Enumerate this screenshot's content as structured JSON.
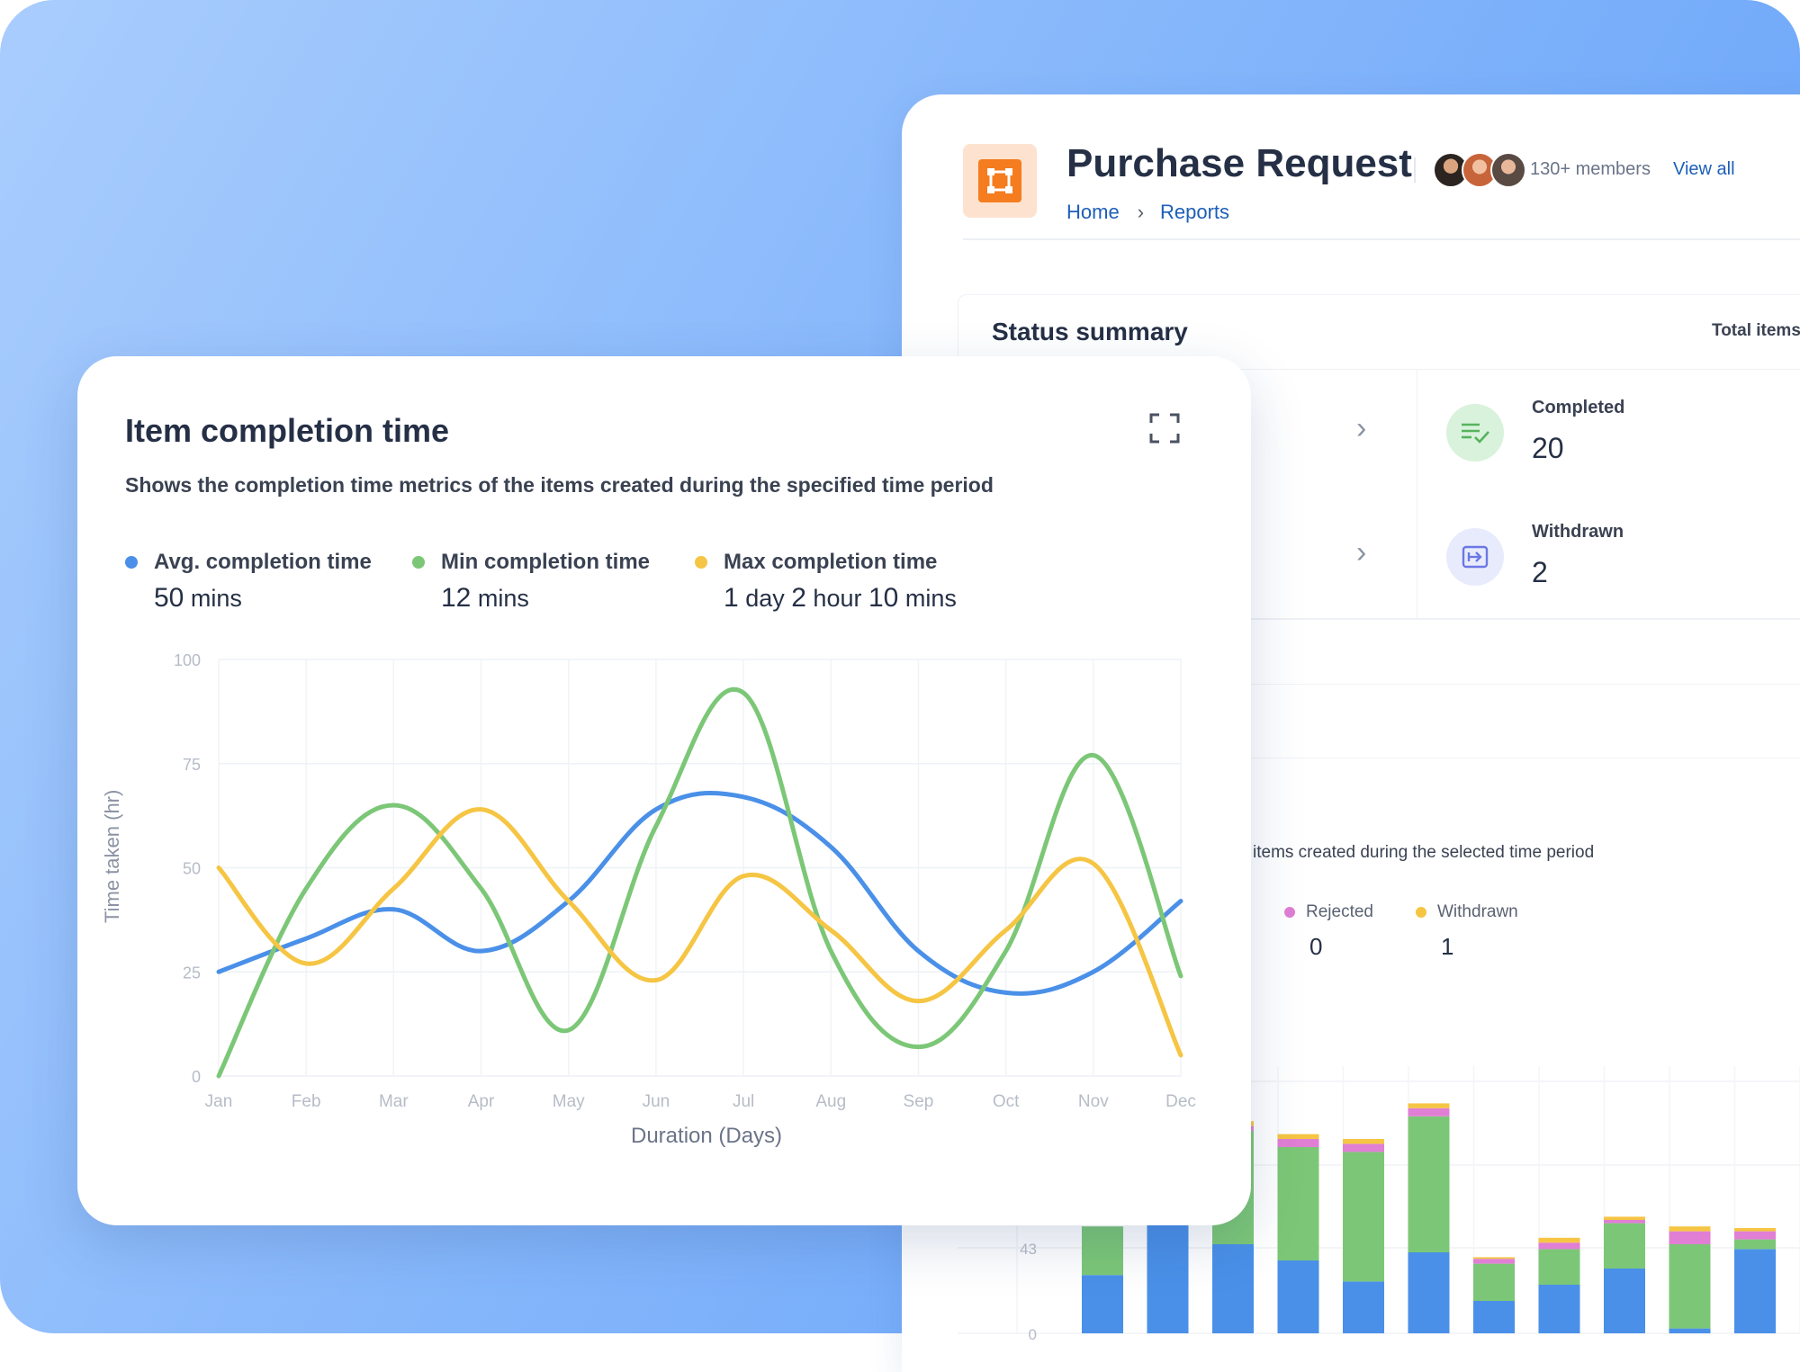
{
  "background_panel": {
    "title": "Purchase Request",
    "members_text": "130+ members",
    "view_all": "View all",
    "breadcrumb": [
      "Home",
      "Reports"
    ],
    "status_summary": {
      "title": "Status summary",
      "total_label": "Total items",
      "stats": [
        {
          "label": "Completed",
          "value": "20",
          "icon": "list-check-icon",
          "color": "#d9f2dc"
        },
        {
          "label": "Withdrawn",
          "value": "2",
          "icon": "withdraw-icon",
          "color": "#e8ebfb"
        }
      ]
    },
    "bar_section": {
      "subtitle": "items created during the selected time period",
      "legend": [
        {
          "name": "Rejected",
          "value": "0",
          "color": "#e07fd4"
        },
        {
          "name": "Withdrawn",
          "value": "1",
          "color": "#f5c543"
        }
      ],
      "chart_data": {
        "type": "bar",
        "y_ticks": [
          "43",
          "0"
        ],
        "series_colors": {
          "blue": "#4a90e8",
          "green": "#7cc777",
          "pink": "#e07fd4",
          "yellow": "#f5c543"
        },
        "stacks": [
          {
            "blue": 36,
            "green": 30,
            "pink": 0,
            "yellow": 0
          },
          {
            "blue": 75,
            "green": 0,
            "pink": 0,
            "yellow": 0
          },
          {
            "blue": 55,
            "green": 70,
            "pink": 3,
            "yellow": 3
          },
          {
            "blue": 45,
            "green": 70,
            "pink": 5,
            "yellow": 3
          },
          {
            "blue": 32,
            "green": 80,
            "pink": 5,
            "yellow": 3
          },
          {
            "blue": 50,
            "green": 84,
            "pink": 5,
            "yellow": 3
          },
          {
            "blue": 20,
            "green": 23,
            "pink": 3,
            "yellow": 1
          },
          {
            "blue": 30,
            "green": 22,
            "pink": 4,
            "yellow": 3
          },
          {
            "blue": 40,
            "green": 28,
            "pink": 2,
            "yellow": 2
          },
          {
            "blue": 3,
            "green": 52,
            "pink": 8,
            "yellow": 3
          },
          {
            "blue": 52,
            "green": 6,
            "pink": 5,
            "yellow": 2
          }
        ]
      }
    }
  },
  "card": {
    "title": "Item completion time",
    "subtitle": "Shows the completion time metrics of the items created during the specified time period",
    "legend": [
      {
        "name": "Avg. completion time",
        "color": "#4a90e8",
        "value_parts": [
          {
            "num": "50",
            "unit": " mins"
          }
        ]
      },
      {
        "name": "Min completion time",
        "color": "#7cc777",
        "value_parts": [
          {
            "num": "12",
            "unit": " mins"
          }
        ]
      },
      {
        "name": "Max completion time",
        "color": "#f5c543",
        "value_parts": [
          {
            "num": "1",
            "unit": " day "
          },
          {
            "num": "2",
            "unit": " hour "
          },
          {
            "num": "10",
            "unit": " mins"
          }
        ]
      }
    ],
    "chart_data": {
      "type": "line",
      "xlabel": "Duration (Days)",
      "ylabel": "Time taken (hr)",
      "ylim": [
        0,
        100
      ],
      "y_ticks": [
        0,
        25,
        50,
        75,
        100
      ],
      "categories": [
        "Jan",
        "Feb",
        "Mar",
        "Apr",
        "May",
        "Jun",
        "Jul",
        "Aug",
        "Sep",
        "Oct",
        "Nov",
        "Dec"
      ],
      "series": [
        {
          "name": "Avg. completion time",
          "color": "#4a90e8",
          "values": [
            25,
            33,
            40,
            30,
            42,
            64,
            67,
            55,
            30,
            20,
            25,
            42
          ]
        },
        {
          "name": "Min completion time",
          "color": "#7cc777",
          "values": [
            0,
            45,
            65,
            45,
            11,
            60,
            92,
            30,
            7,
            30,
            77,
            24
          ]
        },
        {
          "name": "Max completion time",
          "color": "#f5c543",
          "values": [
            50,
            27,
            45,
            64,
            42,
            23,
            48,
            35,
            18,
            35,
            51,
            5
          ]
        }
      ]
    }
  }
}
